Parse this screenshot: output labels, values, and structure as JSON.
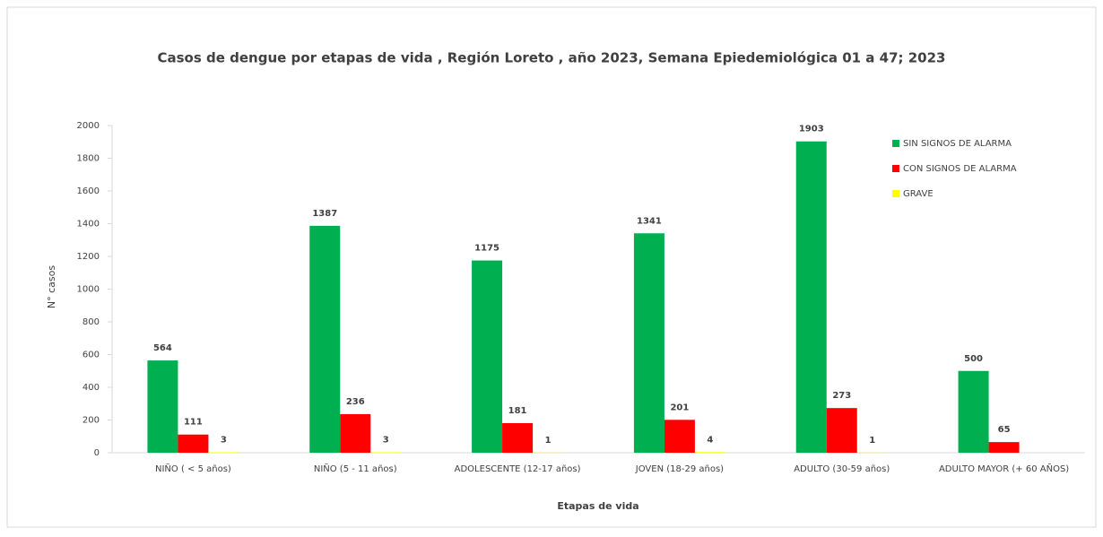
{
  "chart_data": {
    "type": "bar",
    "title": "Casos de dengue por etapas de vida , Región Loreto , año 2023, Semana Epiedemiológica  01 a 47; 2023",
    "x_label": "Etapas de vida",
    "y_label": "N° casos",
    "categories": [
      "NIÑO ( < 5 años)",
      "NIÑO (5 - 11 años)",
      "ADOLESCENTE (12-17 años)",
      "JOVEN (18-29 años)",
      "ADULTO (30-59 años)",
      "ADULTO MAYOR (+ 60 AÑOS)"
    ],
    "series": [
      {
        "name": "SIN SIGNOS DE ALARMA",
        "color": "#00b050",
        "values": [
          564,
          1387,
          1175,
          1341,
          1903,
          500
        ]
      },
      {
        "name": "CON SIGNOS DE ALARMA",
        "color": "#ff0000",
        "values": [
          111,
          236,
          181,
          201,
          273,
          65
        ]
      },
      {
        "name": "GRAVE",
        "color": "#ffff00",
        "values": [
          3,
          3,
          1,
          4,
          1,
          null
        ]
      }
    ],
    "ylim": [
      0,
      2000
    ],
    "yticks": [
      0,
      200,
      400,
      600,
      800,
      1000,
      1200,
      1400,
      1600,
      1800,
      2000
    ],
    "legend": "top-right"
  }
}
